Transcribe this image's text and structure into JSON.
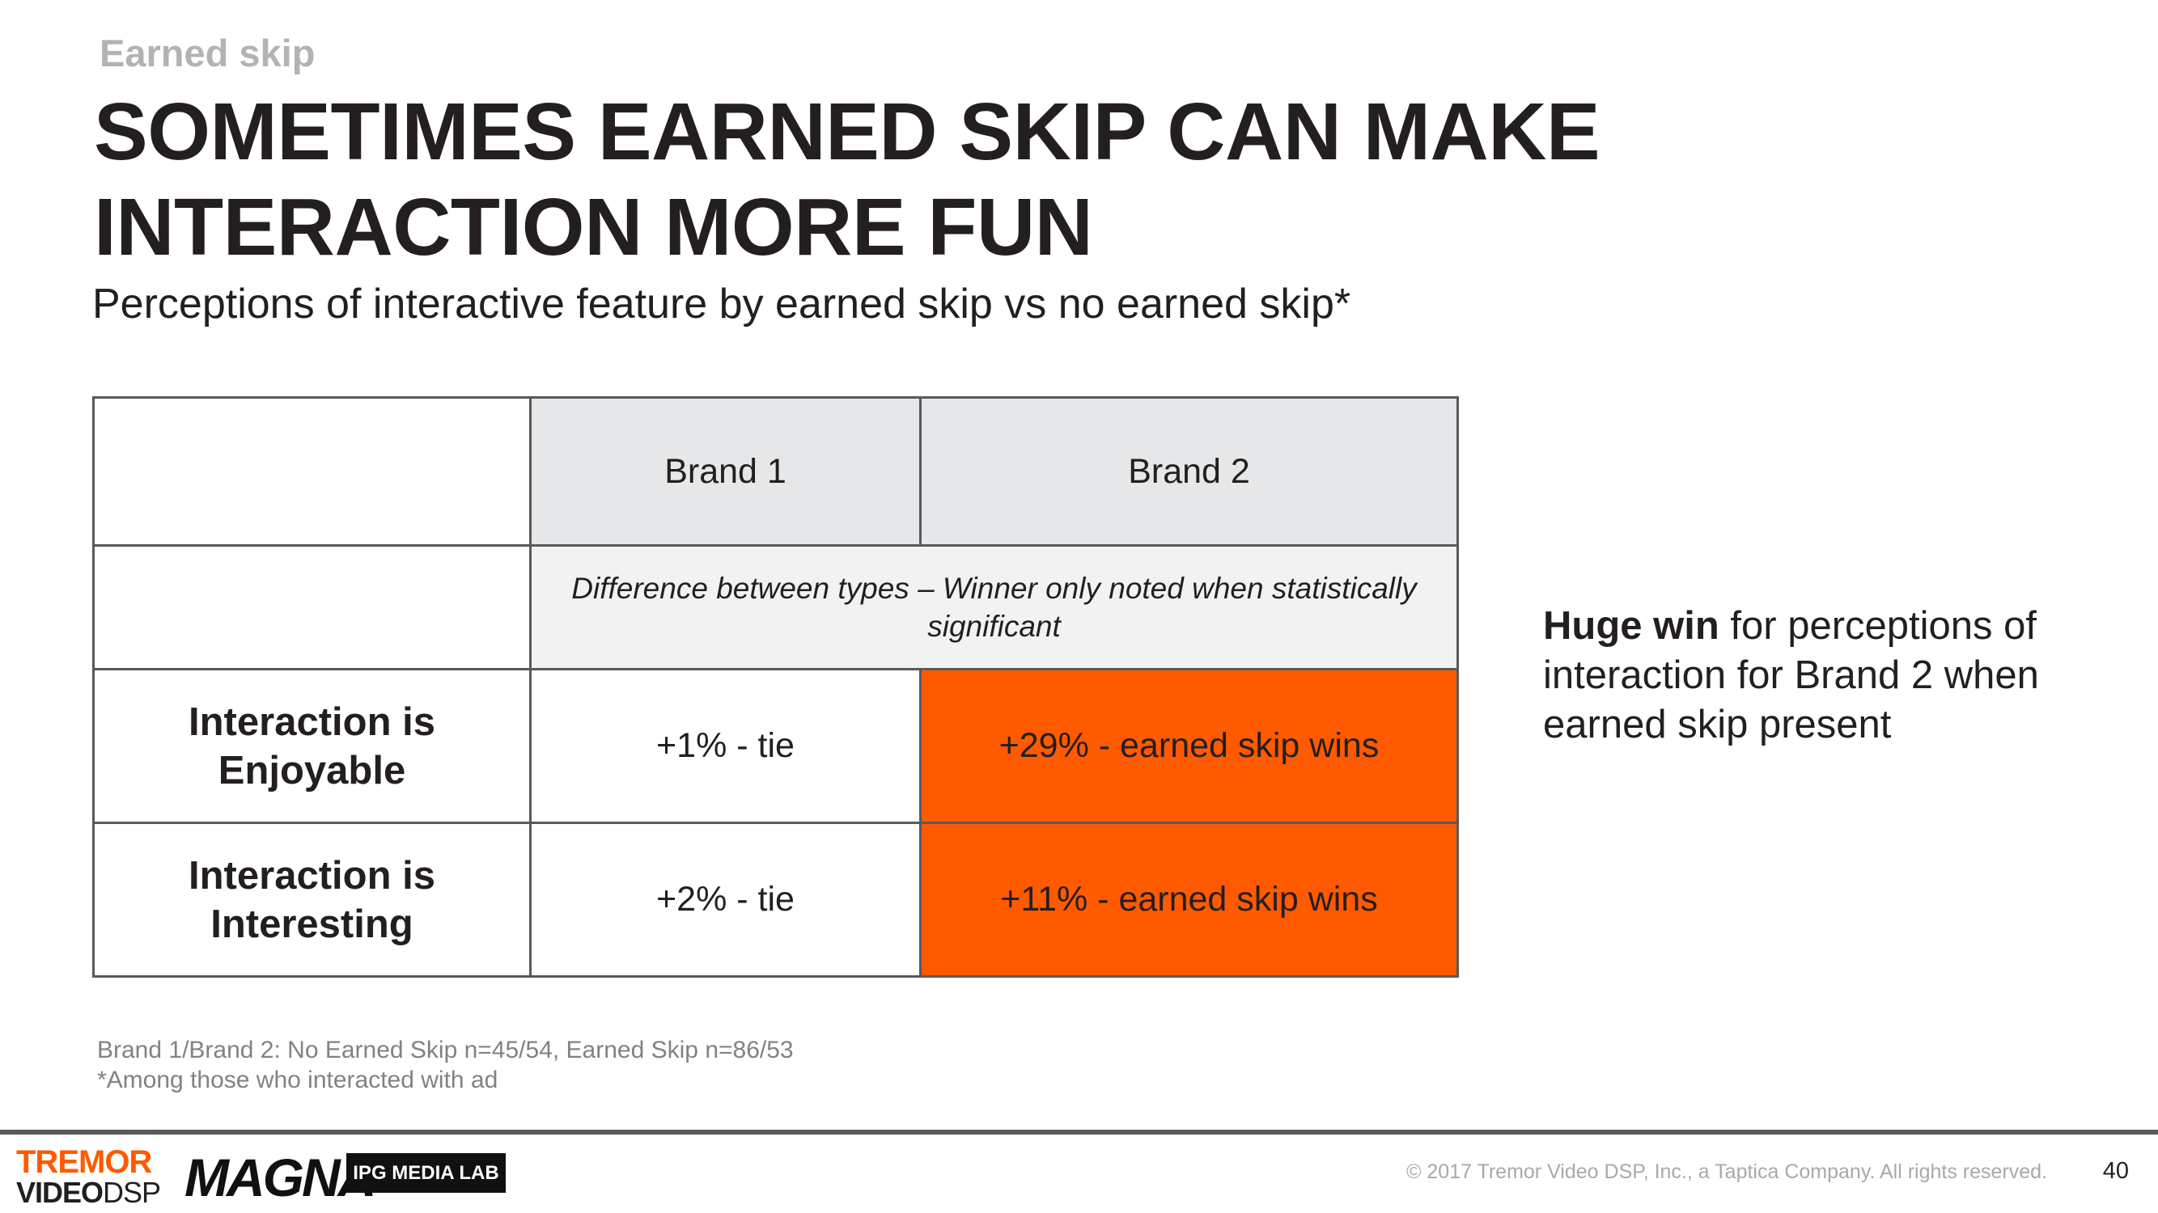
{
  "section_label": "Earned skip",
  "headline": "SOMETIMES EARNED SKIP CAN MAKE INTERACTION MORE FUN",
  "subtitle": "Perceptions of interactive feature by earned skip vs no earned skip*",
  "table": {
    "columns": [
      "Brand 1",
      "Brand 2"
    ],
    "note": "Difference between types – Winner only noted when statistically significant",
    "rows": [
      {
        "label": "Interaction is Enjoyable",
        "brand1": "+1% - tie",
        "brand2": "+29% - earned skip wins"
      },
      {
        "label": "Interaction is Interesting",
        "brand1": "+2% - tie",
        "brand2": "+11% - earned skip wins"
      }
    ]
  },
  "callout": {
    "strong": "Huge win",
    "rest": " for perceptions of interaction for Brand 2 when earned skip present"
  },
  "footnotes": [
    "Brand 1/Brand 2: No Earned Skip n=45/54, Earned Skip n=86/53",
    "*Among those who interacted with ad"
  ],
  "footer": {
    "logo_tremor_top": "TREMOR",
    "logo_tremor_bottom_bold": "VIDEO",
    "logo_tremor_bottom_thin": "DSP",
    "logo_magna": "MAGNA",
    "logo_ipg": "IPG MEDIA LAB",
    "copyright": "© 2017 Tremor Video DSP, Inc., a Taptica Company. All rights reserved.",
    "page_number": "40"
  },
  "colors": {
    "accent_orange": "#ff5a00",
    "header_gray": "#e6e7e8",
    "label_gray": "#b3b3b3"
  }
}
